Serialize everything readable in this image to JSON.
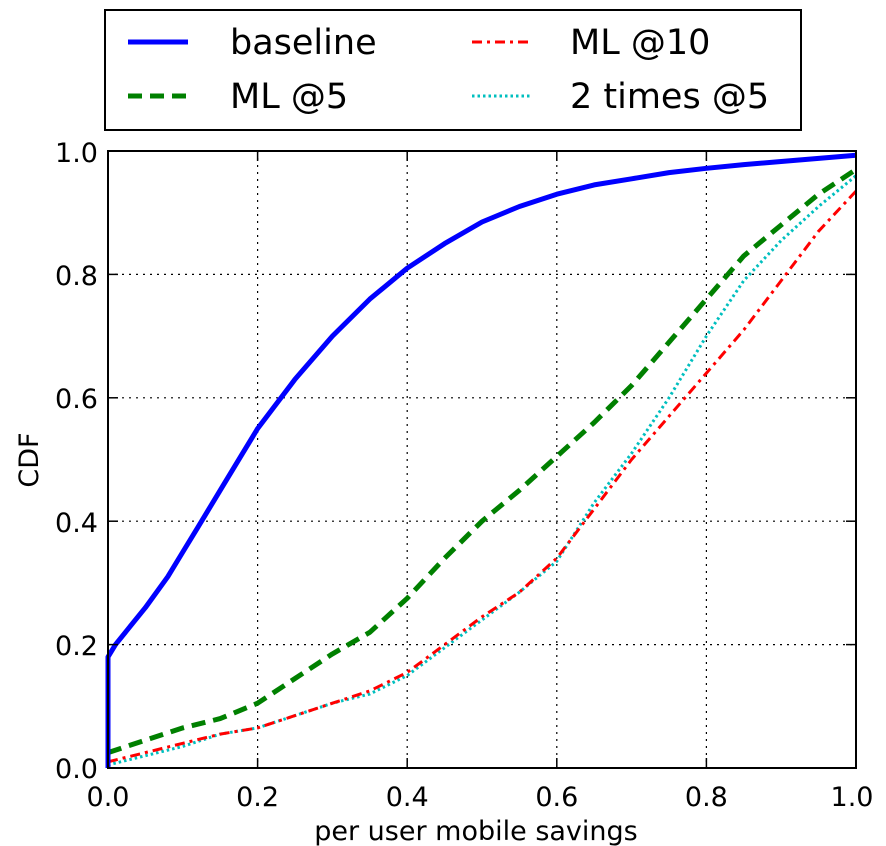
{
  "chart_data": {
    "type": "line",
    "title": "",
    "xlabel": "per user mobile savings",
    "ylabel": "CDF",
    "xlim": [
      0.0,
      1.0
    ],
    "ylim": [
      0.0,
      1.0
    ],
    "xticks": [
      "0.0",
      "0.2",
      "0.4",
      "0.6",
      "0.8",
      "1.0"
    ],
    "yticks": [
      "0.0",
      "0.2",
      "0.4",
      "0.6",
      "0.8",
      "1.0"
    ],
    "grid": true,
    "legend_position": "top, above plot",
    "series": [
      {
        "name": "baseline",
        "color": "#0000ff",
        "style": "solid",
        "x": [
          0.0,
          0.0,
          0.01,
          0.03,
          0.05,
          0.08,
          0.1,
          0.12,
          0.15,
          0.18,
          0.2,
          0.25,
          0.3,
          0.35,
          0.4,
          0.45,
          0.5,
          0.55,
          0.6,
          0.65,
          0.7,
          0.75,
          0.8,
          0.85,
          0.9,
          0.95,
          1.0
        ],
        "y": [
          0.0,
          0.18,
          0.2,
          0.23,
          0.26,
          0.31,
          0.35,
          0.39,
          0.45,
          0.51,
          0.55,
          0.63,
          0.7,
          0.76,
          0.81,
          0.85,
          0.885,
          0.91,
          0.93,
          0.945,
          0.955,
          0.965,
          0.972,
          0.978,
          0.983,
          0.988,
          0.993
        ]
      },
      {
        "name": "ML @5",
        "color": "#008000",
        "style": "dashed",
        "x": [
          0.0,
          0.05,
          0.1,
          0.15,
          0.2,
          0.25,
          0.3,
          0.35,
          0.4,
          0.45,
          0.5,
          0.55,
          0.6,
          0.65,
          0.7,
          0.75,
          0.8,
          0.85,
          0.9,
          0.95,
          1.0
        ],
        "y": [
          0.025,
          0.045,
          0.065,
          0.08,
          0.105,
          0.145,
          0.185,
          0.22,
          0.275,
          0.34,
          0.4,
          0.45,
          0.505,
          0.56,
          0.62,
          0.69,
          0.76,
          0.83,
          0.88,
          0.93,
          0.97
        ]
      },
      {
        "name": "ML @10",
        "color": "#ff0000",
        "style": "dashdot",
        "x": [
          0.0,
          0.05,
          0.1,
          0.15,
          0.2,
          0.25,
          0.3,
          0.35,
          0.4,
          0.45,
          0.5,
          0.55,
          0.6,
          0.65,
          0.7,
          0.75,
          0.8,
          0.85,
          0.9,
          0.95,
          1.0
        ],
        "y": [
          0.01,
          0.025,
          0.04,
          0.055,
          0.065,
          0.085,
          0.105,
          0.125,
          0.155,
          0.2,
          0.245,
          0.285,
          0.34,
          0.42,
          0.5,
          0.57,
          0.64,
          0.71,
          0.79,
          0.87,
          0.935
        ]
      },
      {
        "name": "2 times @5",
        "color": "#00bfbf",
        "style": "dotted",
        "x": [
          0.0,
          0.05,
          0.1,
          0.15,
          0.2,
          0.25,
          0.3,
          0.35,
          0.4,
          0.45,
          0.5,
          0.55,
          0.6,
          0.65,
          0.7,
          0.75,
          0.8,
          0.85,
          0.9,
          0.95,
          1.0
        ],
        "y": [
          0.005,
          0.02,
          0.035,
          0.055,
          0.065,
          0.085,
          0.105,
          0.12,
          0.15,
          0.195,
          0.24,
          0.285,
          0.335,
          0.43,
          0.51,
          0.6,
          0.7,
          0.79,
          0.855,
          0.91,
          0.96
        ]
      }
    ]
  }
}
